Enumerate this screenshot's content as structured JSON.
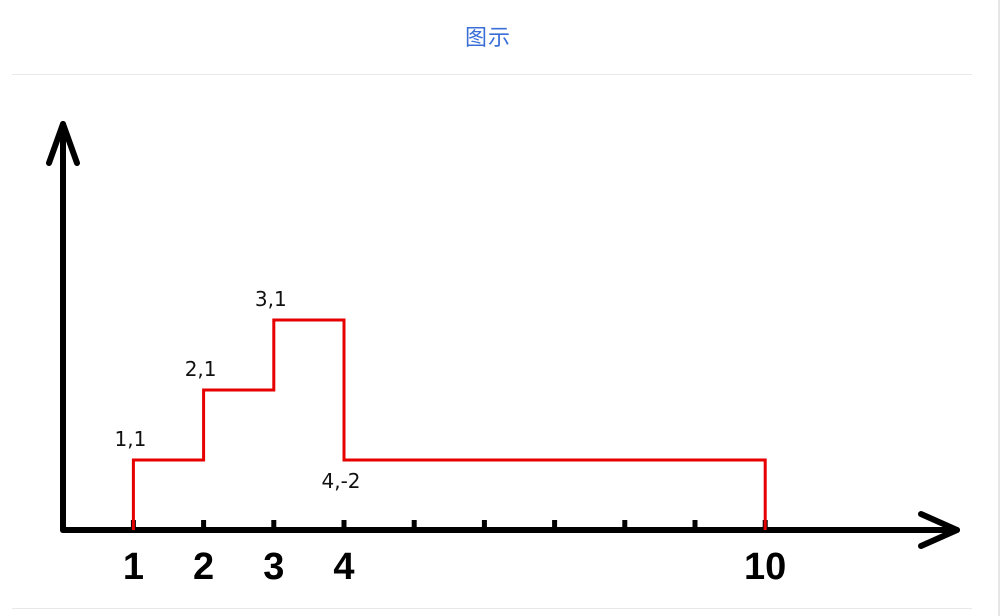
{
  "header": {
    "tab_title": "图示"
  },
  "diagram": {
    "axis_color": "#000000",
    "line_color": "#e60000",
    "x_ticks": [
      1,
      2,
      3,
      4,
      5,
      6,
      7,
      8,
      9,
      10
    ],
    "x_tick_labels": [
      {
        "x": 1,
        "label": "1"
      },
      {
        "x": 2,
        "label": "2"
      },
      {
        "x": 3,
        "label": "3"
      },
      {
        "x": 4,
        "label": "4"
      },
      {
        "x": 10,
        "label": "10"
      }
    ],
    "step_points": [
      {
        "x": 1,
        "y": 0
      },
      {
        "x": 1,
        "y": 1
      },
      {
        "x": 2,
        "y": 1
      },
      {
        "x": 2,
        "y": 2
      },
      {
        "x": 3,
        "y": 2
      },
      {
        "x": 3,
        "y": 3
      },
      {
        "x": 4,
        "y": 3
      },
      {
        "x": 4,
        "y": 1
      },
      {
        "x": 10,
        "y": 1
      },
      {
        "x": 10,
        "y": 0
      }
    ],
    "annotations": [
      {
        "label": "1,1",
        "x": 1,
        "y": 1,
        "anchor": "above"
      },
      {
        "label": "2,1",
        "x": 2,
        "y": 2,
        "anchor": "above"
      },
      {
        "label": "3,1",
        "x": 3,
        "y": 3,
        "anchor": "above"
      },
      {
        "label": "4,-2",
        "x": 4,
        "y": 1,
        "anchor": "below"
      }
    ]
  }
}
